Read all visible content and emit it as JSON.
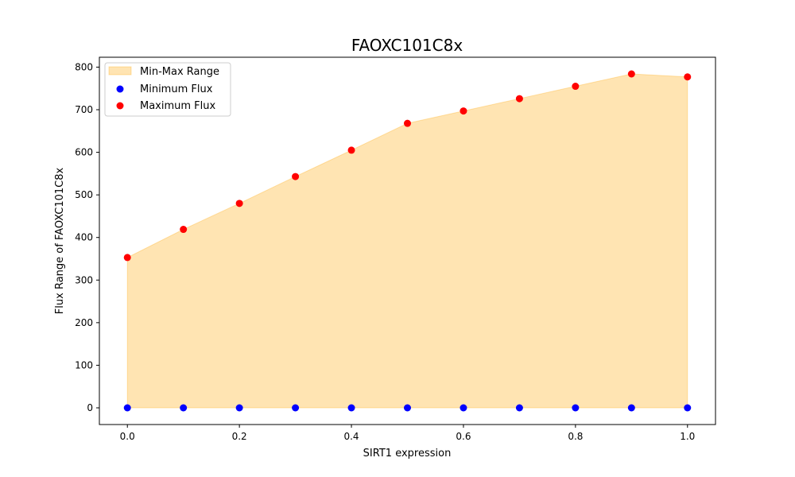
{
  "chart_data": {
    "type": "scatter",
    "title": "FAOXC101C8x",
    "xlabel": "SIRT1 expression",
    "ylabel": "Flux Range of FAOXC101C8x",
    "x": [
      0.0,
      0.1,
      0.2,
      0.3,
      0.4,
      0.5,
      0.6,
      0.7,
      0.8,
      0.9,
      1.0
    ],
    "series": [
      {
        "name": "Minimum Flux",
        "color": "#0000ff",
        "values": [
          0,
          0,
          0,
          0,
          0,
          0,
          0,
          0,
          0,
          0,
          0
        ]
      },
      {
        "name": "Maximum Flux",
        "color": "#ff0000",
        "values": [
          353,
          419,
          480,
          543,
          605,
          668,
          697,
          726,
          755,
          784,
          777
        ]
      }
    ],
    "fill": {
      "name": "Min-Max Range",
      "color": "#ffa500",
      "opacity": 0.3
    },
    "xlim": [
      -0.05,
      1.05
    ],
    "ylim": [
      -39.2,
      823.2
    ],
    "xticks": [
      0.0,
      0.2,
      0.4,
      0.6,
      0.8,
      1.0
    ],
    "xtick_labels": [
      "0.0",
      "0.2",
      "0.4",
      "0.6",
      "0.8",
      "1.0"
    ],
    "yticks": [
      0,
      100,
      200,
      300,
      400,
      500,
      600,
      700,
      800
    ],
    "ytick_labels": [
      "0",
      "100",
      "200",
      "300",
      "400",
      "500",
      "600",
      "700",
      "800"
    ],
    "legend": {
      "position": "top-left",
      "entries": [
        "Min-Max Range",
        "Minimum Flux",
        "Maximum Flux"
      ]
    },
    "grid": false
  }
}
